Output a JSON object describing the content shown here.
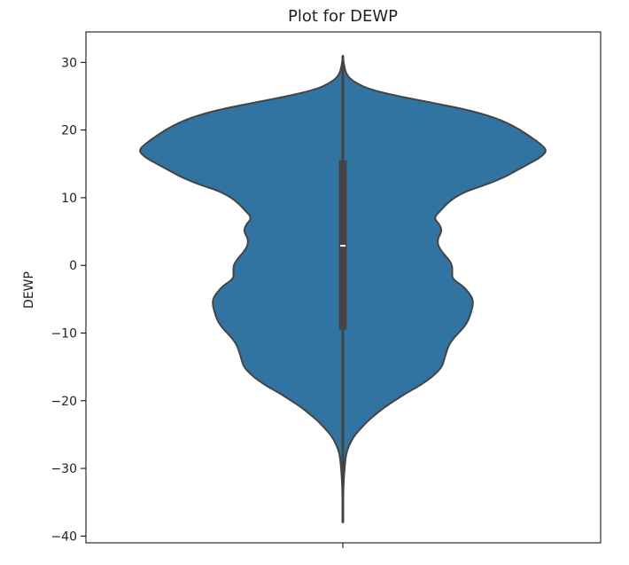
{
  "chart_data": {
    "type": "violin",
    "title": "Plot for DEWP",
    "xlabel": "",
    "ylabel": "DEWP",
    "ylim": [
      -41,
      34.5
    ],
    "yticks": [
      30,
      20,
      10,
      0,
      -10,
      -20,
      -30,
      -40
    ],
    "ytick_labels": [
      "30",
      "20",
      "10",
      "0",
      "−10",
      "−20",
      "−30",
      "−40"
    ],
    "grid": false,
    "violin_color": "#3274a1",
    "edge_color": "#444444",
    "series": {
      "min": -38,
      "max": 31,
      "q1": -9.5,
      "median": 2.9,
      "q3": 15.5,
      "density_profile": [
        [
          31,
          0.0
        ],
        [
          29.5,
          0.005
        ],
        [
          28,
          0.02
        ],
        [
          27,
          0.06
        ],
        [
          26,
          0.13
        ],
        [
          25,
          0.27
        ],
        [
          24,
          0.44
        ],
        [
          23,
          0.6
        ],
        [
          22,
          0.72
        ],
        [
          21,
          0.8
        ],
        [
          20,
          0.86
        ],
        [
          19,
          0.91
        ],
        [
          18,
          0.955
        ],
        [
          17,
          0.99
        ],
        [
          16,
          0.96
        ],
        [
          15,
          0.9
        ],
        [
          14,
          0.84
        ],
        [
          13,
          0.78
        ],
        [
          12,
          0.7
        ],
        [
          11,
          0.6
        ],
        [
          10,
          0.54
        ],
        [
          9,
          0.5
        ],
        [
          8,
          0.47
        ],
        [
          7,
          0.44
        ],
        [
          6,
          0.47
        ],
        [
          5,
          0.48
        ],
        [
          4,
          0.46
        ],
        [
          3,
          0.46
        ],
        [
          2,
          0.48
        ],
        [
          1,
          0.51
        ],
        [
          0,
          0.53
        ],
        [
          -1,
          0.53
        ],
        [
          -2,
          0.53
        ],
        [
          -3,
          0.58
        ],
        [
          -4,
          0.61
        ],
        [
          -5,
          0.63
        ],
        [
          -6,
          0.63
        ],
        [
          -7,
          0.62
        ],
        [
          -8,
          0.61
        ],
        [
          -9,
          0.59
        ],
        [
          -10,
          0.56
        ],
        [
          -11,
          0.53
        ],
        [
          -12,
          0.51
        ],
        [
          -13,
          0.5
        ],
        [
          -14,
          0.49
        ],
        [
          -15,
          0.48
        ],
        [
          -16,
          0.45
        ],
        [
          -17,
          0.41
        ],
        [
          -18,
          0.36
        ],
        [
          -19,
          0.3
        ],
        [
          -20,
          0.25
        ],
        [
          -21,
          0.2
        ],
        [
          -22,
          0.16
        ],
        [
          -23,
          0.12
        ],
        [
          -24,
          0.09
        ],
        [
          -25,
          0.06
        ],
        [
          -26,
          0.04
        ],
        [
          -27,
          0.025
        ],
        [
          -28,
          0.015
        ],
        [
          -30,
          0.008
        ],
        [
          -32,
          0.004
        ],
        [
          -34,
          0.002
        ],
        [
          -36,
          0.001
        ],
        [
          -38,
          0.0
        ]
      ]
    }
  }
}
